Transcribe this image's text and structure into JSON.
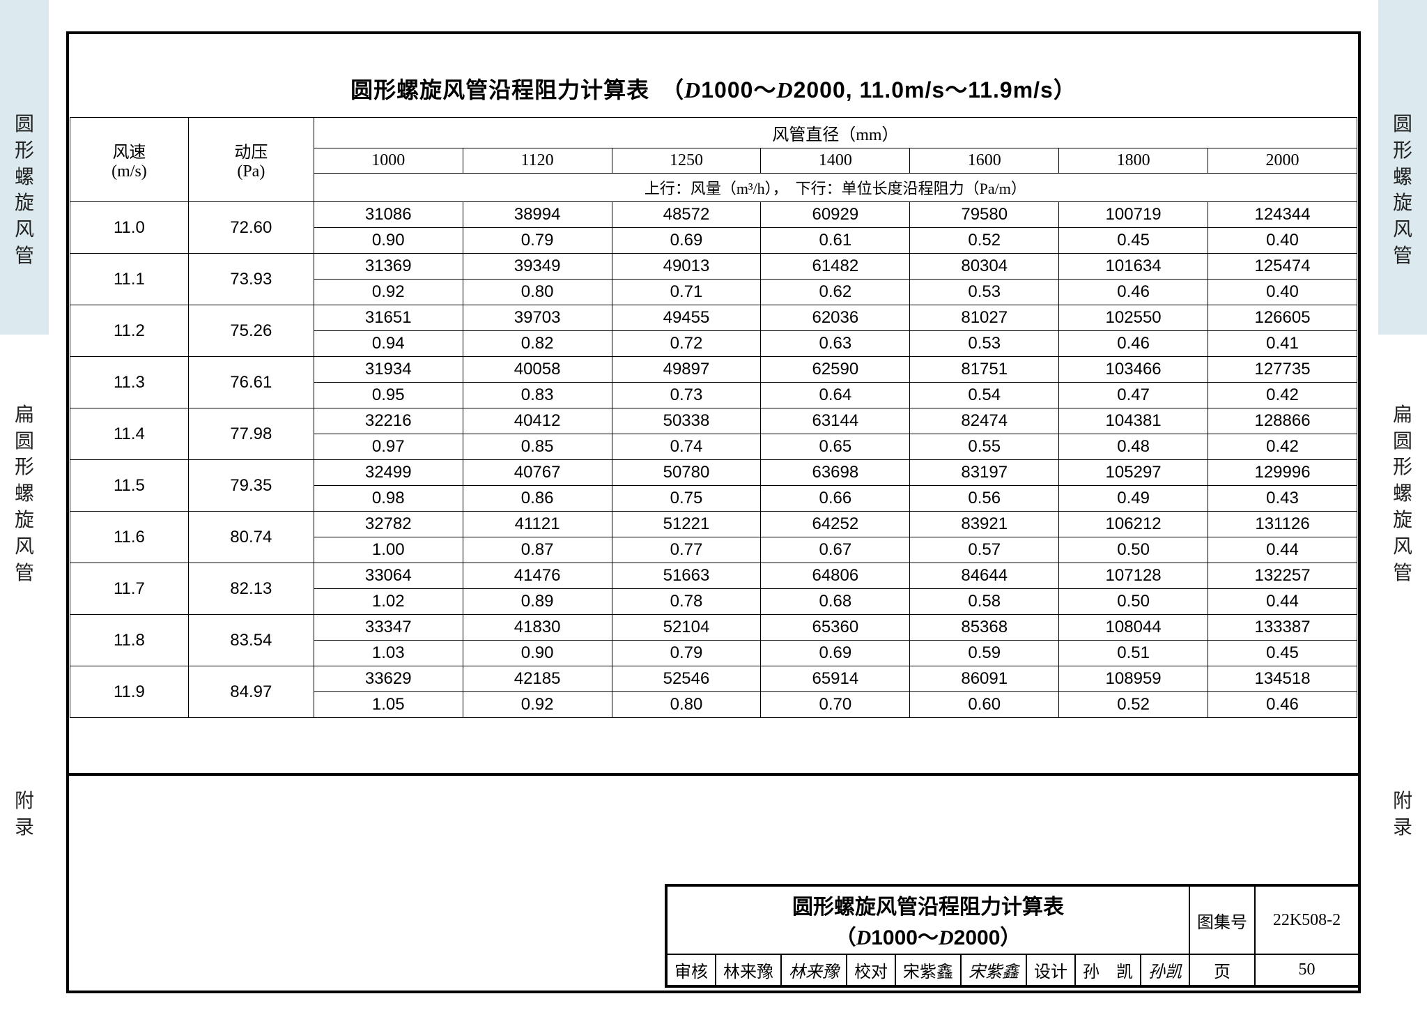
{
  "title_prefix": "圆形螺旋风管沿程阻力计算表　（",
  "title_d1": "D",
  "title_mid": "1000～",
  "title_d2": "D",
  "title_suffix": "2000, 11.0m/s～11.9m/s）",
  "side": {
    "group1": [
      "圆",
      "形",
      "螺",
      "旋",
      "风",
      "管"
    ],
    "group2": [
      "扁",
      "圆",
      "形",
      "螺",
      "旋",
      "风",
      "管"
    ],
    "group3": [
      "附",
      "录"
    ]
  },
  "header": {
    "speed": "风速\n(m/s)",
    "pressure": "动压\n(Pa)",
    "dia_title": "风管直径（mm）",
    "diameters": [
      "1000",
      "1120",
      "1250",
      "1400",
      "1600",
      "1800",
      "2000"
    ],
    "sub_caption": "上行：风量（m³/h），　下行：单位长度沿程阻力（Pa/m）"
  },
  "rows": [
    {
      "v": "11.0",
      "p": "72.60",
      "q": [
        "31086",
        "38994",
        "48572",
        "60929",
        "79580",
        "100719",
        "124344"
      ],
      "r": [
        "0.90",
        "0.79",
        "0.69",
        "0.61",
        "0.52",
        "0.45",
        "0.40"
      ]
    },
    {
      "v": "11.1",
      "p": "73.93",
      "q": [
        "31369",
        "39349",
        "49013",
        "61482",
        "80304",
        "101634",
        "125474"
      ],
      "r": [
        "0.92",
        "0.80",
        "0.71",
        "0.62",
        "0.53",
        "0.46",
        "0.40"
      ]
    },
    {
      "v": "11.2",
      "p": "75.26",
      "q": [
        "31651",
        "39703",
        "49455",
        "62036",
        "81027",
        "102550",
        "126605"
      ],
      "r": [
        "0.94",
        "0.82",
        "0.72",
        "0.63",
        "0.53",
        "0.46",
        "0.41"
      ]
    },
    {
      "v": "11.3",
      "p": "76.61",
      "q": [
        "31934",
        "40058",
        "49897",
        "62590",
        "81751",
        "103466",
        "127735"
      ],
      "r": [
        "0.95",
        "0.83",
        "0.73",
        "0.64",
        "0.54",
        "0.47",
        "0.42"
      ]
    },
    {
      "v": "11.4",
      "p": "77.98",
      "q": [
        "32216",
        "40412",
        "50338",
        "63144",
        "82474",
        "104381",
        "128866"
      ],
      "r": [
        "0.97",
        "0.85",
        "0.74",
        "0.65",
        "0.55",
        "0.48",
        "0.42"
      ]
    },
    {
      "v": "11.5",
      "p": "79.35",
      "q": [
        "32499",
        "40767",
        "50780",
        "63698",
        "83197",
        "105297",
        "129996"
      ],
      "r": [
        "0.98",
        "0.86",
        "0.75",
        "0.66",
        "0.56",
        "0.49",
        "0.43"
      ]
    },
    {
      "v": "11.6",
      "p": "80.74",
      "q": [
        "32782",
        "41121",
        "51221",
        "64252",
        "83921",
        "106212",
        "131126"
      ],
      "r": [
        "1.00",
        "0.87",
        "0.77",
        "0.67",
        "0.57",
        "0.50",
        "0.44"
      ]
    },
    {
      "v": "11.7",
      "p": "82.13",
      "q": [
        "33064",
        "41476",
        "51663",
        "64806",
        "84644",
        "107128",
        "132257"
      ],
      "r": [
        "1.02",
        "0.89",
        "0.78",
        "0.68",
        "0.58",
        "0.50",
        "0.44"
      ]
    },
    {
      "v": "11.8",
      "p": "83.54",
      "q": [
        "33347",
        "41830",
        "52104",
        "65360",
        "85368",
        "108044",
        "133387"
      ],
      "r": [
        "1.03",
        "0.90",
        "0.79",
        "0.69",
        "0.59",
        "0.51",
        "0.45"
      ]
    },
    {
      "v": "11.9",
      "p": "84.97",
      "q": [
        "33629",
        "42185",
        "52546",
        "65914",
        "86091",
        "108959",
        "134518"
      ],
      "r": [
        "1.05",
        "0.92",
        "0.80",
        "0.70",
        "0.60",
        "0.52",
        "0.46"
      ]
    }
  ],
  "titleblock": {
    "name_top": "圆形螺旋风管沿程阻力计算表",
    "name_bot_pre": "（",
    "name_bot_d1": "D",
    "name_bot_mid": "1000～",
    "name_bot_d2": "D",
    "name_bot_suf": "2000）",
    "set_label": "图集号",
    "set_value": "22K508-2",
    "page_label": "页",
    "page_value": "50",
    "roles": {
      "review_l": "审核",
      "review_v": "林来豫",
      "review_s": "林来豫",
      "check_l": "校对",
      "check_v": "宋紫鑫",
      "check_s": "宋紫鑫",
      "design_l": "设计",
      "design_v": "孙　凯",
      "design_s": "孙凯"
    }
  },
  "style": {
    "band_color": "#dceaef",
    "text_color": "#000000",
    "border_color": "#000000",
    "title_fontsize": 32,
    "cell_fontsize": 24
  }
}
